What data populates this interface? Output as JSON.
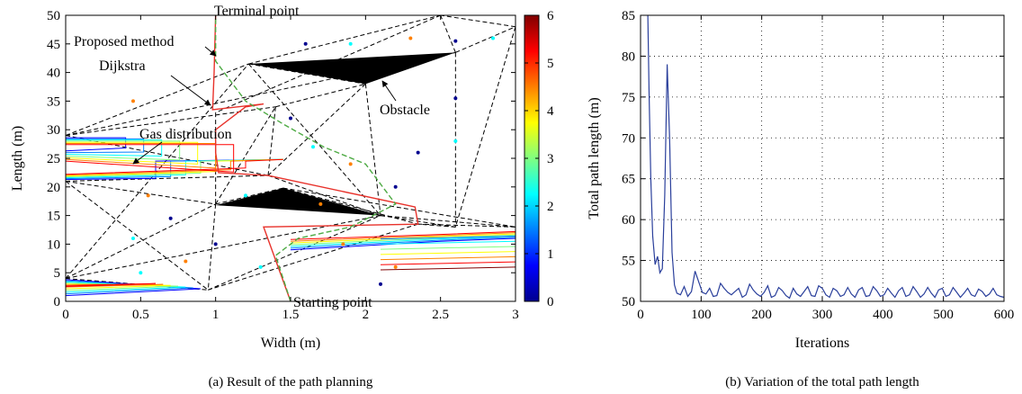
{
  "panel_a": {
    "xlabel": "Width (m)",
    "ylabel": "Length (m)",
    "caption": "(a)  Result of the path planning",
    "x_ticks": [
      "0",
      "0.5",
      "1",
      "1.5",
      "2",
      "2.5",
      "3"
    ],
    "y_ticks": [
      "0",
      "5",
      "10",
      "15",
      "20",
      "25",
      "30",
      "35",
      "40",
      "45",
      "50"
    ],
    "colorbar_ticks": [
      "0",
      "1",
      "2",
      "3",
      "4",
      "5",
      "6"
    ],
    "annotations": {
      "terminal": "Terminal point",
      "proposed": "Proposed method",
      "dijkstra": "Dijkstra",
      "obstacle": "Obstacle",
      "gas": "Gas distribution",
      "starting": "Starting point"
    }
  },
  "panel_b": {
    "xlabel": "Iterations",
    "ylabel": "Total path length (m)",
    "caption": "(b)  Variation of the total path length",
    "x_ticks": [
      "0",
      "100",
      "200",
      "300",
      "400",
      "500",
      "600"
    ],
    "y_ticks": [
      "50",
      "55",
      "60",
      "65",
      "70",
      "75",
      "80",
      "85"
    ]
  },
  "colors": {
    "series": "#2a3f9b",
    "proposed": "#e8322b",
    "dijkstra": "#4daa43",
    "obstacle": "#000000"
  },
  "chart_data": [
    {
      "type": "line",
      "xlabel": "Width (m)",
      "ylabel": "Length (m)",
      "xlim": [
        0,
        3
      ],
      "ylim": [
        0,
        50
      ],
      "colorbar_range": [
        0,
        6
      ],
      "obstacles": [
        [
          [
            1.22,
            41.5
          ],
          [
            2.6,
            43.5
          ],
          [
            2.0,
            38.0
          ]
        ],
        [
          [
            1.0,
            16.8
          ],
          [
            1.45,
            19.8
          ],
          [
            2.1,
            15.0
          ]
        ]
      ],
      "series": [
        {
          "name": "Proposed method",
          "x": [
            1.5,
            1.32,
            2.35,
            2.33,
            1.35,
            1.02,
            1.0,
            1.0,
            1.2,
            1.32,
            0.98,
            0.99,
            1.0
          ],
          "y": [
            0.0,
            13.0,
            13.5,
            16.5,
            22.0,
            22.5,
            26.0,
            30.0,
            34.0,
            34.5,
            33.5,
            40.0,
            50.0
          ]
        },
        {
          "name": "Dijkstra",
          "x": [
            1.5,
            1.4,
            1.55,
            1.9,
            2.2,
            2.0,
            1.72,
            1.45,
            1.2,
            1.0,
            1.0
          ],
          "y": [
            0.0,
            8.0,
            11.0,
            13.0,
            17.0,
            24.0,
            27.0,
            31.0,
            35.0,
            42.0,
            50.0
          ]
        }
      ]
    },
    {
      "type": "line",
      "xlabel": "Iterations",
      "ylabel": "Total path length (m)",
      "xlim": [
        0,
        600
      ],
      "ylim": [
        50,
        85
      ],
      "grid": true,
      "series": [
        {
          "x": [
            12,
            14,
            17,
            20,
            24,
            28,
            32,
            36,
            40,
            44,
            48,
            52,
            56,
            60,
            66,
            72,
            78,
            84,
            90,
            96,
            102,
            108,
            114,
            120,
            126,
            132,
            138,
            144,
            150,
            156,
            162,
            168,
            174,
            180,
            186,
            192,
            198,
            204,
            210,
            216,
            222,
            228,
            234,
            240,
            246,
            252,
            258,
            264,
            270,
            276,
            282,
            288,
            294,
            300,
            306,
            312,
            318,
            324,
            330,
            336,
            342,
            348,
            354,
            360,
            366,
            372,
            378,
            384,
            390,
            396,
            402,
            408,
            414,
            420,
            426,
            432,
            438,
            444,
            450,
            456,
            462,
            468,
            474,
            480,
            486,
            492,
            498,
            504,
            510,
            516,
            522,
            528,
            534,
            540,
            546,
            552,
            558,
            564,
            570,
            576,
            582,
            588,
            594,
            600
          ],
          "y": [
            85.0,
            76.0,
            65.0,
            58.0,
            54.5,
            55.5,
            53.5,
            54.0,
            63.0,
            79.0,
            70.0,
            56.0,
            52.0,
            51.0,
            50.8,
            51.8,
            50.6,
            51.2,
            53.7,
            52.4,
            51.1,
            50.9,
            51.6,
            50.6,
            50.7,
            52.2,
            51.6,
            51.1,
            50.8,
            51.2,
            51.6,
            50.5,
            50.8,
            52.1,
            51.4,
            50.9,
            50.6,
            51.1,
            51.9,
            50.5,
            50.7,
            51.7,
            51.3,
            50.7,
            50.4,
            51.6,
            50.9,
            50.6,
            51.2,
            51.8,
            50.7,
            50.6,
            51.9,
            51.6,
            50.8,
            50.5,
            51.6,
            51.3,
            50.6,
            50.8,
            51.7,
            50.9,
            50.5,
            51.4,
            51.7,
            50.6,
            50.7,
            51.8,
            51.3,
            50.6,
            50.8,
            51.6,
            51.0,
            50.5,
            51.3,
            51.7,
            50.6,
            50.8,
            51.8,
            51.2,
            50.5,
            50.9,
            51.7,
            51.0,
            50.5,
            51.4,
            51.6,
            50.6,
            50.8,
            51.7,
            51.1,
            50.5,
            51.0,
            51.6,
            50.8,
            50.6,
            51.5,
            51.2,
            50.6,
            50.9,
            51.6,
            50.8,
            50.6,
            50.5
          ]
        }
      ]
    }
  ]
}
